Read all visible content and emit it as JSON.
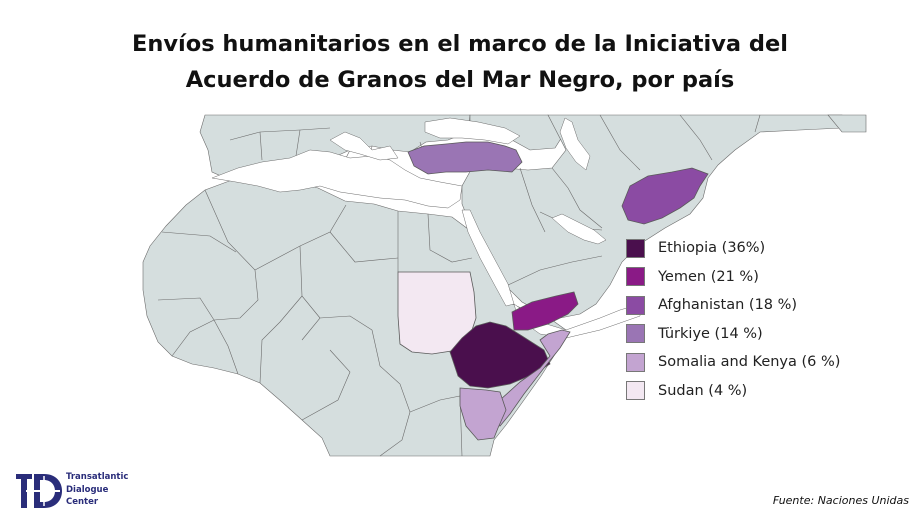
{
  "title": {
    "line1": "Envíos humanitarios en el marco de la Iniciativa del",
    "line2": "Acuerdo de Granos del Mar Negro, por país"
  },
  "legend": {
    "items": [
      {
        "label": "Ethiopia (36%)",
        "country": "Ethiopia",
        "share_percent": 36,
        "color": "#4a0f4d"
      },
      {
        "label": "Yemen (21 %)",
        "country": "Yemen",
        "share_percent": 21,
        "color": "#8a1a86"
      },
      {
        "label": "Afghanistan (18 %)",
        "country": "Afghanistan",
        "share_percent": 18,
        "color": "#8b4ba3"
      },
      {
        "label": "Türkiye (14 %)",
        "country": "Türkiye",
        "share_percent": 14,
        "color": "#9a75b4"
      },
      {
        "label": "Somalia and Kenya (6 %)",
        "country": "Somalia and Kenya",
        "share_percent": 6,
        "color": "#c3a4d1"
      },
      {
        "label": "Sudan (4 %)",
        "country": "Sudan",
        "share_percent": 4,
        "color": "#f3e8f2"
      }
    ]
  },
  "map_colors": {
    "land": "#d5dede",
    "border": "#6b6b6b",
    "water": "#ffffff"
  },
  "logo": {
    "line1": "Transatlantic",
    "line2": "Dialogue",
    "line3": "Center",
    "color": "#2a2d7a"
  },
  "source": "Fuente: Naciones Unidas"
}
